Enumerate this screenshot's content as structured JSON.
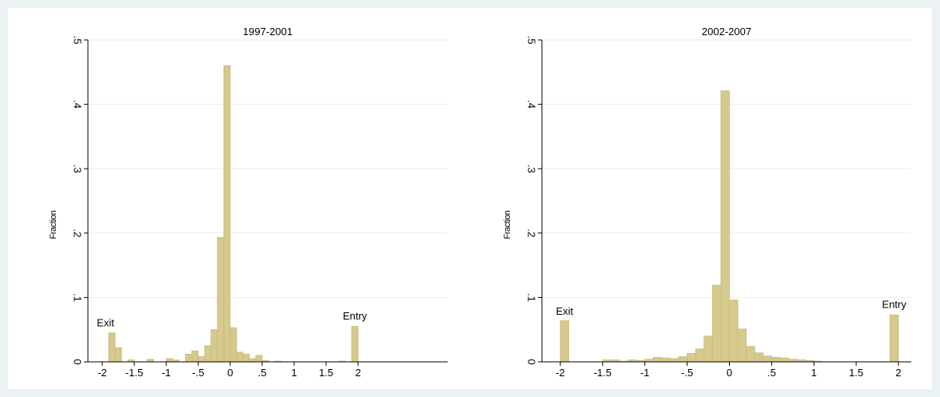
{
  "chart_data": [
    {
      "type": "bar",
      "title": "1997-2001",
      "xlabel": "",
      "ylabel": "Fraction",
      "xlim": [
        -2.1,
        2.1
      ],
      "ylim": [
        0,
        0.5
      ],
      "xticks": [
        "-2",
        "-1.5",
        "-1",
        "-.5",
        "0",
        ".5",
        "1",
        "1.5",
        "2"
      ],
      "yticks": [
        "0",
        ".1",
        ".2",
        ".3",
        ".4",
        ".5"
      ],
      "grid": true,
      "annotations": [
        {
          "text": "Exit",
          "x": -1.95,
          "y": 0.055
        },
        {
          "text": "Entry",
          "x": 1.95,
          "y": 0.066
        }
      ],
      "bin_width": 0.1,
      "bins": [
        {
          "x": -1.9,
          "y": 0.045
        },
        {
          "x": -1.8,
          "y": 0.022
        },
        {
          "x": -1.6,
          "y": 0.003
        },
        {
          "x": -1.3,
          "y": 0.004
        },
        {
          "x": -1.0,
          "y": 0.005
        },
        {
          "x": -0.9,
          "y": 0.003
        },
        {
          "x": -0.7,
          "y": 0.012
        },
        {
          "x": -0.6,
          "y": 0.017
        },
        {
          "x": -0.5,
          "y": 0.008
        },
        {
          "x": -0.4,
          "y": 0.025
        },
        {
          "x": -0.3,
          "y": 0.05
        },
        {
          "x": -0.2,
          "y": 0.193
        },
        {
          "x": -0.1,
          "y": 0.46
        },
        {
          "x": 0.0,
          "y": 0.053
        },
        {
          "x": 0.1,
          "y": 0.015
        },
        {
          "x": 0.2,
          "y": 0.012
        },
        {
          "x": 0.3,
          "y": 0.005
        },
        {
          "x": 0.4,
          "y": 0.01
        },
        {
          "x": 0.5,
          "y": 0.002
        },
        {
          "x": 0.7,
          "y": 0.001
        },
        {
          "x": 1.7,
          "y": 0.001
        },
        {
          "x": 1.9,
          "y": 0.055
        }
      ]
    },
    {
      "type": "bar",
      "title": "2002-2007",
      "xlabel": "",
      "ylabel": "Fraction",
      "xlim": [
        -2.1,
        2.1
      ],
      "ylim": [
        0,
        0.5
      ],
      "xticks": [
        "-2",
        "-1.5",
        "-1",
        "-.5",
        "0",
        ".5",
        "1",
        "1.5",
        "2"
      ],
      "yticks": [
        "0",
        ".1",
        ".2",
        ".3",
        ".4",
        ".5"
      ],
      "grid": true,
      "annotations": [
        {
          "text": "Exit",
          "x": -1.95,
          "y": 0.073
        },
        {
          "text": "Entry",
          "x": 1.95,
          "y": 0.084
        }
      ],
      "bin_width": 0.1,
      "bins": [
        {
          "x": -2.0,
          "y": 0.064
        },
        {
          "x": -1.5,
          "y": 0.003
        },
        {
          "x": -1.4,
          "y": 0.003
        },
        {
          "x": -1.3,
          "y": 0.001
        },
        {
          "x": -1.2,
          "y": 0.003
        },
        {
          "x": -1.1,
          "y": 0.002
        },
        {
          "x": -1.0,
          "y": 0.004
        },
        {
          "x": -0.9,
          "y": 0.007
        },
        {
          "x": -0.8,
          "y": 0.006
        },
        {
          "x": -0.7,
          "y": 0.005
        },
        {
          "x": -0.6,
          "y": 0.008
        },
        {
          "x": -0.5,
          "y": 0.013
        },
        {
          "x": -0.4,
          "y": 0.02
        },
        {
          "x": -0.3,
          "y": 0.04
        },
        {
          "x": -0.2,
          "y": 0.119
        },
        {
          "x": -0.1,
          "y": 0.421
        },
        {
          "x": 0.0,
          "y": 0.096
        },
        {
          "x": 0.1,
          "y": 0.051
        },
        {
          "x": 0.2,
          "y": 0.024
        },
        {
          "x": 0.3,
          "y": 0.014
        },
        {
          "x": 0.4,
          "y": 0.009
        },
        {
          "x": 0.5,
          "y": 0.007
        },
        {
          "x": 0.6,
          "y": 0.006
        },
        {
          "x": 0.7,
          "y": 0.004
        },
        {
          "x": 0.8,
          "y": 0.003
        },
        {
          "x": 0.9,
          "y": 0.002
        },
        {
          "x": 1.0,
          "y": 0.001
        },
        {
          "x": 1.9,
          "y": 0.073
        }
      ]
    }
  ],
  "colors": {
    "page_background": "#eaf2f3",
    "plot_background": "#ffffff",
    "bar_fill": "#d6c98d",
    "bar_stroke": "#c8ba78",
    "grid": "#e6eeee"
  }
}
